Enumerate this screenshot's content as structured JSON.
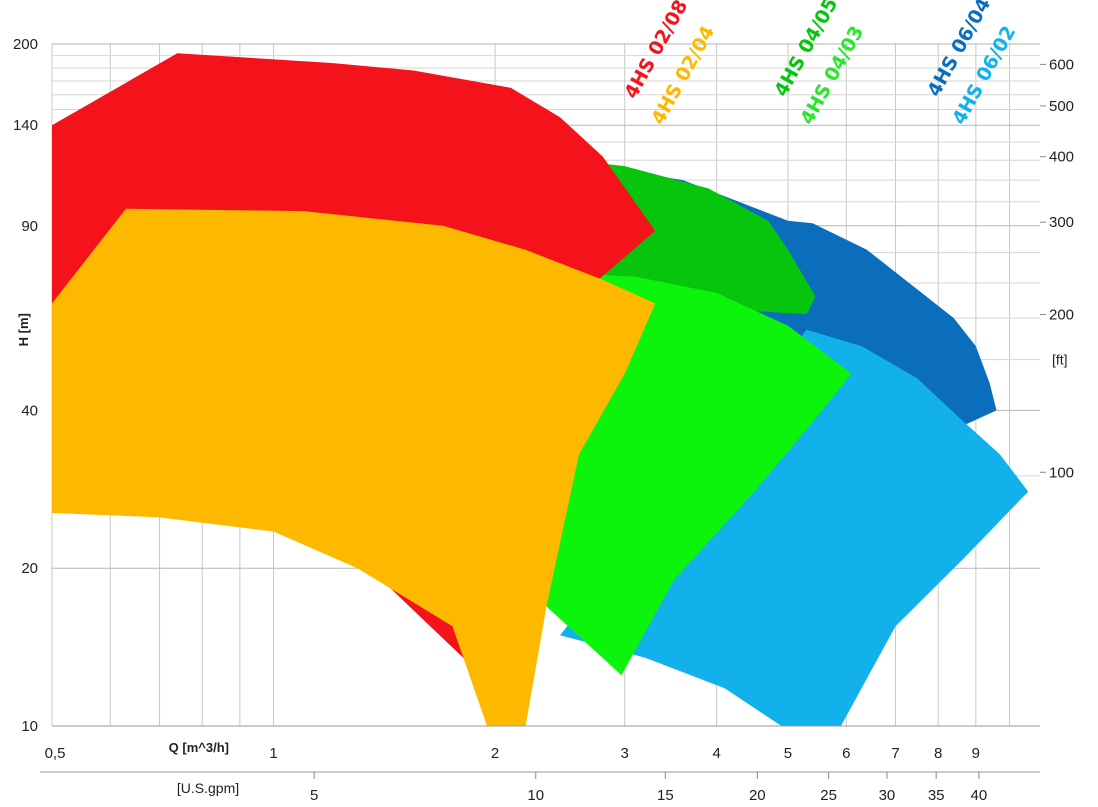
{
  "chart_data": {
    "type": "area",
    "title": "",
    "x_axis": {
      "scale": "log",
      "label": "Q [m^3/h]",
      "ticks": [
        "0,5",
        "1",
        "2",
        "3",
        "4",
        "5",
        "6",
        "7",
        "8",
        "9"
      ],
      "tick_values": [
        0.5,
        1,
        2,
        3,
        4,
        5,
        6,
        7,
        8,
        9
      ],
      "range": [
        0.5,
        11
      ]
    },
    "x_axis_secondary": {
      "label": "[U.S.gpm]",
      "ticks": [
        "5",
        "10",
        "15",
        "20",
        "25",
        "30",
        "35",
        "40"
      ],
      "tick_values": [
        5,
        10,
        15,
        20,
        25,
        30,
        35,
        40
      ]
    },
    "y_axis": {
      "scale": "log",
      "label": "H [m]",
      "ticks": [
        "10",
        "20",
        "40",
        "90",
        "140",
        "200"
      ],
      "tick_values": [
        10,
        20,
        40,
        90,
        140,
        200
      ],
      "range": [
        10,
        200
      ]
    },
    "y_axis_secondary": {
      "label": "[ft]",
      "ticks": [
        "100",
        "200",
        "300",
        "400",
        "500",
        "600"
      ],
      "tick_values": [
        100,
        200,
        300,
        400,
        500,
        600
      ]
    },
    "grid": true,
    "legend": "labels at top, rotated",
    "series": [
      {
        "name": "4HS 06/04",
        "color": "#0a6ebd",
        "polygon": [
          [
            2.95,
            115
          ],
          [
            3.6,
            110
          ],
          [
            5.0,
            92
          ],
          [
            5.4,
            91
          ],
          [
            6.4,
            81
          ],
          [
            7.5,
            68
          ],
          [
            8.4,
            60
          ],
          [
            9.0,
            53
          ],
          [
            9.4,
            45
          ],
          [
            9.6,
            40
          ],
          [
            8.5,
            37
          ],
          [
            6.5,
            32
          ],
          [
            5.5,
            25
          ]
        ]
      },
      {
        "name": "4HS 06/02",
        "color": "#12b1ec",
        "polygon": [
          [
            5.3,
            57
          ],
          [
            6.3,
            53
          ],
          [
            7.5,
            46
          ],
          [
            8.5,
            39
          ],
          [
            9.7,
            33
          ],
          [
            10.6,
            28
          ],
          [
            8.7,
            21
          ],
          [
            7.0,
            15.5
          ],
          [
            5.9,
            10
          ],
          [
            4.9,
            10
          ],
          [
            4.1,
            11.8
          ],
          [
            3.2,
            13.5
          ],
          [
            2.45,
            14.9
          ]
        ]
      },
      {
        "name": "4HS 04/05",
        "color": "#07c40c",
        "polygon": [
          [
            2.55,
            120
          ],
          [
            3.0,
            117
          ],
          [
            3.9,
            106
          ],
          [
            4.7,
            92
          ],
          [
            5.0,
            81
          ],
          [
            5.45,
            66
          ],
          [
            5.3,
            61
          ],
          [
            2.55,
            65
          ]
        ]
      },
      {
        "name": "4HS 04/03",
        "color": "#0cf40c",
        "polygon": [
          [
            2.5,
            73
          ],
          [
            3.1,
            72
          ],
          [
            4.0,
            67
          ],
          [
            5.0,
            58
          ],
          [
            6.1,
            47
          ],
          [
            5.4,
            38
          ],
          [
            4.5,
            28
          ],
          [
            3.5,
            19
          ],
          [
            2.97,
            12.5
          ],
          [
            1.97,
            21.2
          ],
          [
            2.5,
            50
          ]
        ]
      },
      {
        "name": "4HS 02/08",
        "color": "#f4131b",
        "polygon": [
          [
            0.5,
            140
          ],
          [
            0.74,
            192
          ],
          [
            1.2,
            184
          ],
          [
            1.55,
            178
          ],
          [
            2.1,
            165
          ],
          [
            2.45,
            145
          ],
          [
            2.8,
            122
          ],
          [
            3.3,
            88
          ],
          [
            2.6,
            66
          ],
          [
            2.1,
            50
          ],
          [
            1.85,
            35
          ],
          [
            2.05,
            22
          ],
          [
            2.12,
            14.2
          ],
          [
            2.0,
            11.8
          ],
          [
            1.35,
            20
          ],
          [
            0.5,
            62
          ]
        ]
      },
      {
        "name": "4HS 02/04",
        "color": "#fdb900",
        "polygon": [
          [
            0.5,
            64
          ],
          [
            0.63,
            97
          ],
          [
            1.1,
            96
          ],
          [
            1.7,
            90
          ],
          [
            2.2,
            81
          ],
          [
            2.8,
            71
          ],
          [
            3.3,
            64
          ],
          [
            3.0,
            47
          ],
          [
            2.6,
            33
          ],
          [
            2.35,
            17
          ],
          [
            2.2,
            10
          ],
          [
            1.95,
            10
          ],
          [
            1.75,
            15.5
          ],
          [
            1.3,
            20
          ],
          [
            1.0,
            23.5
          ],
          [
            0.7,
            25
          ],
          [
            0.5,
            25.5
          ]
        ]
      }
    ],
    "series_labels": [
      {
        "text": "4HS 02/08",
        "color": "#f4131b"
      },
      {
        "text": "4HS 02/04",
        "color": "#fdb900"
      },
      {
        "text": "4HS 04/05",
        "color": "#07c40c"
      },
      {
        "text": "4HS 04/03",
        "color": "#2ae62a"
      },
      {
        "text": "4HS 06/04",
        "color": "#0a6ebd"
      },
      {
        "text": "4HS 06/02",
        "color": "#12b1ec"
      }
    ]
  }
}
